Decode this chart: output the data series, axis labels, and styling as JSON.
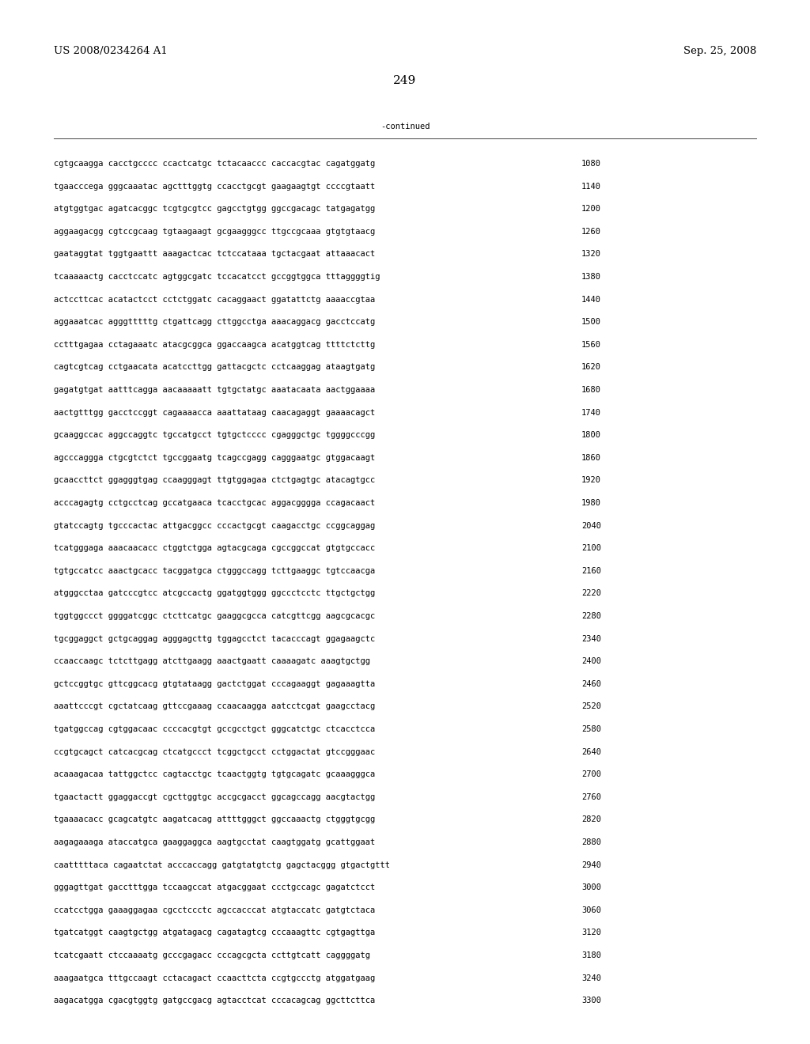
{
  "header_left": "US 2008/0234264 A1",
  "header_right": "Sep. 25, 2008",
  "page_number": "249",
  "continued_label": "-continued",
  "background_color": "#ffffff",
  "text_color": "#000000",
  "font_size_header": 9.5,
  "font_size_body": 7.5,
  "font_size_page": 11,
  "sequence_lines": [
    [
      "cgtgcaagga cacctgcccc ccactcatgc tctacaaccc caccacgtac cagatggatg",
      "1080"
    ],
    [
      "tgaacccega gggcaaatac agctttggtg ccacctgcgt gaagaagtgt ccccgtaatt",
      "1140"
    ],
    [
      "atgtggtgac agatcacggc tcgtgcgtcc gagcctgtgg ggccgacagc tatgagatgg",
      "1200"
    ],
    [
      "aggaagacgg cgtccgcaag tgtaagaagt gcgaagggcc ttgccgcaaa gtgtgtaacg",
      "1260"
    ],
    [
      "gaataggtat tggtgaattt aaagactcac tctccataaa tgctacgaat attaaacact",
      "1320"
    ],
    [
      "tcaaaaactg cacctccatc agtggcgatc tccacatcct gccggtggca tttaggggtig",
      "1380"
    ],
    [
      "actccttcac acatactcct cctctggatc cacaggaact ggatattctg aaaaccgtaa",
      "1440"
    ],
    [
      "aggaaatcac agggtttttg ctgattcagg cttggcctga aaacaggacg gacctccatg",
      "1500"
    ],
    [
      "cctttgagaa cctagaaatc atacgcggca ggaccaagca acatggtcag ttttctcttg",
      "1560"
    ],
    [
      "cagtcgtcag cctgaacata acatccttgg gattacgctc cctcaaggag ataagtgatg",
      "1620"
    ],
    [
      "gagatgtgat aatttcagga aacaaaaatt tgtgctatgc aaatacaata aactggaaaa",
      "1680"
    ],
    [
      "aactgtttgg gacctccggt cagaaaacca aaattataag caacagaggt gaaaacagct",
      "1740"
    ],
    [
      "gcaaggccac aggccaggtc tgccatgcct tgtgctcccc cgagggctgc tggggcccgg",
      "1800"
    ],
    [
      "agcccaggga ctgcgtctct tgccggaatg tcagccgagg cagggaatgc gtggacaagt",
      "1860"
    ],
    [
      "gcaaccttct ggagggtgag ccaagggagt ttgtggagaa ctctgagtgc atacagtgcc",
      "1920"
    ],
    [
      "acccagagtg cctgcctcag gccatgaaca tcacctgcac aggacgggga ccagacaact",
      "1980"
    ],
    [
      "gtatccagtg tgcccactac attgacggcc cccactgcgt caagacctgc ccggcaggag",
      "2040"
    ],
    [
      "tcatgggaga aaacaacacc ctggtctgga agtacgcaga cgccggccat gtgtgccacc",
      "2100"
    ],
    [
      "tgtgccatcc aaactgcacc tacggatgca ctgggccagg tcttgaaggc tgtccaacga",
      "2160"
    ],
    [
      "atgggcctaa gatcccgtcc atcgccactg ggatggtggg ggccctcctc ttgctgctgg",
      "2220"
    ],
    [
      "tggtggccct ggggatcggc ctcttcatgc gaaggcgcca catcgttcgg aagcgcacgc",
      "2280"
    ],
    [
      "tgcggaggct gctgcaggag agggagcttg tggagcctct tacacccagt ggagaagctc",
      "2340"
    ],
    [
      "ccaaccaagc tctcttgagg atcttgaagg aaactgaatt caaaagatc aaagtgctgg",
      "2400"
    ],
    [
      "gctccggtgc gttcggcacg gtgtataagg gactctggat cccagaaggt gagaaagtta",
      "2460"
    ],
    [
      "aaattcccgt cgctatcaag gttccgaaag ccaacaagga aatcctcgat gaagcctacg",
      "2520"
    ],
    [
      "tgatggccag cgtggacaac ccccacgtgt gccgcctgct gggcatctgc ctcacctcca",
      "2580"
    ],
    [
      "ccgtgcagct catcacgcag ctcatgccct tcggctgcct cctggactat gtccgggaac",
      "2640"
    ],
    [
      "acaaagacaa tattggctcc cagtacctgc tcaactggtg tgtgcagatc gcaaagggca",
      "2700"
    ],
    [
      "tgaactactt ggaggaccgt cgcttggtgc accgcgacct ggcagccagg aacgtactgg",
      "2760"
    ],
    [
      "tgaaaacacc gcagcatgtc aagatcacag attttgggct ggccaaactg ctgggtgcgg",
      "2820"
    ],
    [
      "aagagaaaga ataccatgca gaaggaggca aagtgcctat caagtggatg gcattggaat",
      "2880"
    ],
    [
      "caatttttaca cagaatctat acccaccagg gatgtatgtctg gagctacggg gtgactgttt",
      "2940"
    ],
    [
      "gggagttgat gacctttgga tccaagccat atgacggaat ccctgccagc gagatctcct",
      "3000"
    ],
    [
      "ccatcctgga gaaaggagaa cgcctccctc agccacccat atgtaccatc gatgtctaca",
      "3060"
    ],
    [
      "tgatcatggt caagtgctgg atgatagacg cagatagtcg cccaaagttc cgtgagttga",
      "3120"
    ],
    [
      "tcatcgaatt ctccaaaatg gcccgagacc cccagcgcta ccttgtcatt caggggatg",
      "3180"
    ],
    [
      "aaagaatgca tttgccaagt cctacagact ccaacttcta ccgtgccctg atggatgaag",
      "3240"
    ],
    [
      "aagacatgga cgacgtggtg gatgccgacg agtacctcat cccacagcag ggcttcttca",
      "3300"
    ]
  ]
}
